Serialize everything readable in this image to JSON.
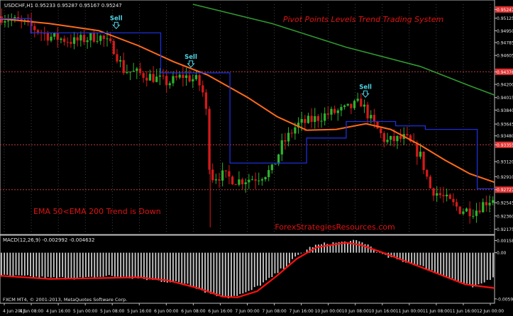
{
  "chart_data": {
    "type": "candlestick",
    "symbol_label": "USDCHF,H1  0.95233 0.95287 0.95167 0.95247",
    "title": "Pivot Points Levels Trend Trading System",
    "trend_note": "EMA 50<EMA 200 Trend is Down",
    "watermark": "ForexStrategiesResources.com",
    "copyright": "FXCM MT4, © 2001-2013, MetaQuotes Software Corp.",
    "signals": [
      {
        "label": "Sell",
        "x": 0.235,
        "price": 0.9495
      },
      {
        "label": "Sell",
        "x": 0.386,
        "price": 0.9441
      },
      {
        "label": "Sell",
        "x": 0.739,
        "price": 0.9399
      }
    ],
    "price_axis": {
      "min": 0.9213,
      "max": 0.9532,
      "ticks": [
        "0.95247",
        "0.95125",
        "0.94950",
        "0.94785",
        "0.94605",
        "0.94376",
        "0.94200",
        "0.94015",
        "0.93840",
        "0.93645",
        "0.93480",
        "0.93355",
        "0.93120",
        "0.92910",
        "0.92727",
        "0.92545",
        "0.92360",
        "0.92175"
      ],
      "highlighted_ticks": [
        "0.95247",
        "0.94376",
        "0.93355",
        "0.92727"
      ]
    },
    "horizontal_levels": [
      0.94376,
      0.93355,
      0.92727
    ],
    "time_axis": {
      "labels": [
        "4 Jun 2013",
        "4 Jun 08:00",
        "4 Jun 16:00",
        "5 Jun 00:00",
        "5 Jun 08:00",
        "5 Jun 16:00",
        "6 Jun 00:00",
        "6 Jun 08:00",
        "6 Jun 16:00",
        "7 Jun 00:00",
        "7 Jun 08:00",
        "7 Jun 16:00",
        "10 Jun 00:00",
        "10 Jun 08:00",
        "10 Jun 16:00",
        "11 Jun 00:00",
        "11 Jun 08:00",
        "11 Jun 16:00",
        "12 Jun 00:00"
      ]
    },
    "series": [
      {
        "name": "EMA 200",
        "color": "#2f9a2f",
        "points": [
          [
            0.39,
            0.9532
          ],
          [
            0.55,
            0.9505
          ],
          [
            0.7,
            0.9472
          ],
          [
            0.85,
            0.9445
          ],
          [
            0.95,
            0.9418
          ],
          [
            1.0,
            0.9405
          ]
        ]
      },
      {
        "name": "EMA 50",
        "color": "#ff6a1a",
        "points": [
          [
            0.0,
            0.9512
          ],
          [
            0.1,
            0.9505
          ],
          [
            0.2,
            0.9495
          ],
          [
            0.28,
            0.9474
          ],
          [
            0.35,
            0.9452
          ],
          [
            0.42,
            0.9433
          ],
          [
            0.5,
            0.9402
          ],
          [
            0.56,
            0.9375
          ],
          [
            0.62,
            0.9356
          ],
          [
            0.68,
            0.9357
          ],
          [
            0.74,
            0.9365
          ],
          [
            0.79,
            0.9357
          ],
          [
            0.85,
            0.9335
          ],
          [
            0.9,
            0.9314
          ],
          [
            0.95,
            0.9295
          ],
          [
            1.0,
            0.9283
          ]
        ]
      },
      {
        "name": "Pivot",
        "color": "#1c2fd8",
        "points": [
          [
            0.0,
            0.9512
          ],
          [
            0.062,
            0.9512
          ],
          [
            0.062,
            0.9492
          ],
          [
            0.325,
            0.9492
          ],
          [
            0.325,
            0.9436
          ],
          [
            0.465,
            0.9436
          ],
          [
            0.465,
            0.931
          ],
          [
            0.62,
            0.931
          ],
          [
            0.62,
            0.9345
          ],
          [
            0.7,
            0.9345
          ],
          [
            0.7,
            0.9368
          ],
          [
            0.8,
            0.9368
          ],
          [
            0.8,
            0.9362
          ],
          [
            0.86,
            0.9362
          ],
          [
            0.86,
            0.9357
          ],
          [
            0.965,
            0.9357
          ],
          [
            0.965,
            0.9274
          ],
          [
            1.0,
            0.9274
          ]
        ]
      }
    ],
    "candle_path": [
      [
        0.0,
        0.9515
      ],
      [
        0.05,
        0.9505
      ],
      [
        0.1,
        0.9487
      ],
      [
        0.15,
        0.948
      ],
      [
        0.2,
        0.9488
      ],
      [
        0.23,
        0.947
      ],
      [
        0.25,
        0.944
      ],
      [
        0.3,
        0.9432
      ],
      [
        0.34,
        0.9422
      ],
      [
        0.37,
        0.9432
      ],
      [
        0.4,
        0.9425
      ],
      [
        0.415,
        0.94
      ],
      [
        0.425,
        0.929
      ],
      [
        0.45,
        0.9293
      ],
      [
        0.48,
        0.9285
      ],
      [
        0.52,
        0.929
      ],
      [
        0.55,
        0.93
      ],
      [
        0.57,
        0.9335
      ],
      [
        0.6,
        0.9363
      ],
      [
        0.63,
        0.937
      ],
      [
        0.66,
        0.9378
      ],
      [
        0.7,
        0.9385
      ],
      [
        0.73,
        0.9395
      ],
      [
        0.75,
        0.937
      ],
      [
        0.78,
        0.934
      ],
      [
        0.82,
        0.9345
      ],
      [
        0.85,
        0.932
      ],
      [
        0.87,
        0.9275
      ],
      [
        0.9,
        0.926
      ],
      [
        0.93,
        0.9245
      ],
      [
        0.96,
        0.9243
      ],
      [
        0.98,
        0.9255
      ],
      [
        1.0,
        0.9262
      ]
    ],
    "macd": {
      "label": "MACD(12,26,9) -0.002992 -0.004632",
      "axis_ticks": [
        "0.001582",
        "0.00",
        "-0.005998"
      ],
      "min": -0.0062,
      "max": 0.0019,
      "histogram_path": [
        [
          0.0,
          -0.003
        ],
        [
          0.05,
          -0.0031
        ],
        [
          0.1,
          -0.0033
        ],
        [
          0.18,
          -0.0033
        ],
        [
          0.22,
          -0.003
        ],
        [
          0.3,
          -0.0035
        ],
        [
          0.38,
          -0.004
        ],
        [
          0.42,
          -0.0052
        ],
        [
          0.46,
          -0.0058
        ],
        [
          0.5,
          -0.0052
        ],
        [
          0.55,
          -0.0032
        ],
        [
          0.6,
          -0.0005
        ],
        [
          0.63,
          0.0008
        ],
        [
          0.66,
          0.0012
        ],
        [
          0.72,
          0.0015
        ],
        [
          0.74,
          0.0012
        ],
        [
          0.78,
          -0.0005
        ],
        [
          0.84,
          -0.0015
        ],
        [
          0.9,
          -0.003
        ],
        [
          0.96,
          -0.0046
        ],
        [
          1.0,
          -0.003
        ]
      ],
      "signal_line": [
        [
          0.0,
          -0.003
        ],
        [
          0.1,
          -0.0034
        ],
        [
          0.2,
          -0.0033
        ],
        [
          0.28,
          -0.0032
        ],
        [
          0.34,
          -0.0036
        ],
        [
          0.4,
          -0.0046
        ],
        [
          0.45,
          -0.0057
        ],
        [
          0.48,
          -0.0058
        ],
        [
          0.52,
          -0.005
        ],
        [
          0.56,
          -0.003
        ],
        [
          0.6,
          -0.0008
        ],
        [
          0.64,
          0.0007
        ],
        [
          0.7,
          0.0013
        ],
        [
          0.73,
          0.001
        ],
        [
          0.77,
          0.0001
        ],
        [
          0.82,
          -0.0011
        ],
        [
          0.88,
          -0.0026
        ],
        [
          0.94,
          -0.0041
        ],
        [
          1.0,
          -0.0046
        ]
      ]
    },
    "colors": {
      "background": "#000000",
      "grid": "#6b6b6b",
      "frame": "#c0c0c0",
      "bull_candle": "#2db32d",
      "bear_candle": "#d61a1a",
      "level_line": "#c03a3a",
      "signal_text": "#4fd6e6",
      "title_text": "#e01212",
      "macd_hist": "#c8c8c8",
      "macd_signal": "#ff1010",
      "tick_highlight_bg": "#e03030"
    }
  }
}
